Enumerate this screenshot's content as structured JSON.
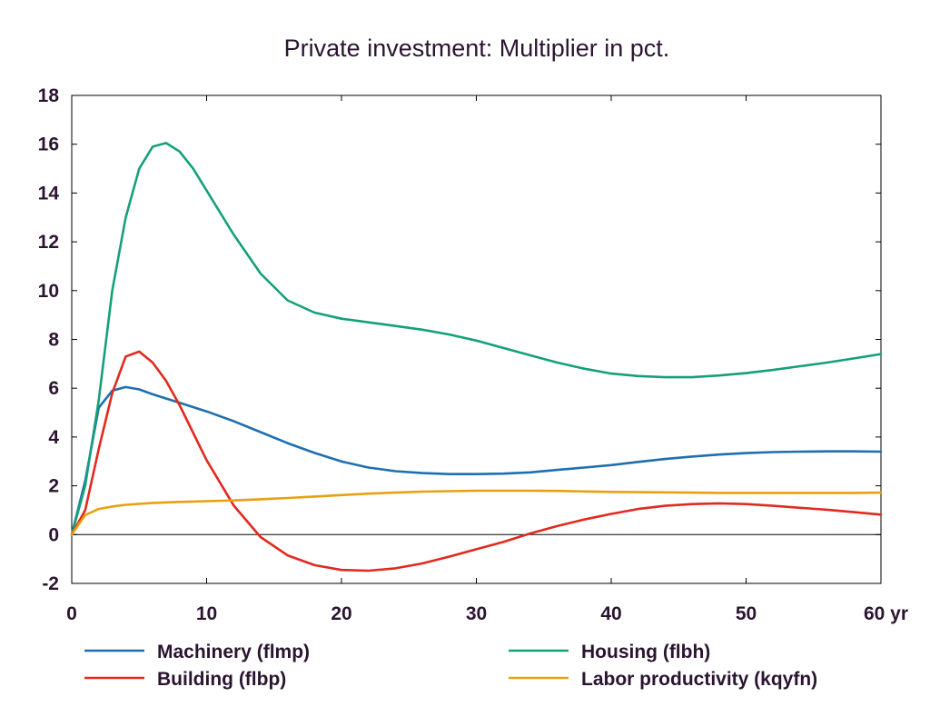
{
  "chart_data": {
    "type": "line",
    "title": "Private investment: Multiplier in pct.",
    "xlabel": "",
    "ylabel": "",
    "xlim": [
      0,
      60
    ],
    "ylim": [
      -2,
      18
    ],
    "x_ticks": [
      0,
      10,
      20,
      30,
      40,
      50,
      60
    ],
    "x_tick_labels": [
      "0",
      "10",
      "20",
      "30",
      "40",
      "50",
      "60 yr"
    ],
    "y_ticks": [
      -2,
      0,
      2,
      4,
      6,
      8,
      10,
      12,
      14,
      16,
      18
    ],
    "y_tick_labels": [
      "-2",
      "0",
      "2",
      "4",
      "6",
      "8",
      "10",
      "12",
      "14",
      "16",
      "18"
    ],
    "grid": false,
    "zero_line": true,
    "legend_position": "bottom",
    "series": [
      {
        "name": "Machinery (flmp)",
        "color": "#1f6fb0",
        "points": [
          [
            0,
            0
          ],
          [
            1,
            2.2
          ],
          [
            2,
            5.2
          ],
          [
            3,
            5.9
          ],
          [
            4,
            6.05
          ],
          [
            5,
            5.95
          ],
          [
            6,
            5.75
          ],
          [
            8,
            5.4
          ],
          [
            10,
            5.05
          ],
          [
            12,
            4.65
          ],
          [
            14,
            4.2
          ],
          [
            16,
            3.75
          ],
          [
            18,
            3.35
          ],
          [
            20,
            3.0
          ],
          [
            22,
            2.75
          ],
          [
            24,
            2.6
          ],
          [
            26,
            2.52
          ],
          [
            28,
            2.48
          ],
          [
            30,
            2.48
          ],
          [
            32,
            2.5
          ],
          [
            34,
            2.55
          ],
          [
            36,
            2.65
          ],
          [
            38,
            2.75
          ],
          [
            40,
            2.85
          ],
          [
            42,
            2.98
          ],
          [
            44,
            3.1
          ],
          [
            46,
            3.2
          ],
          [
            48,
            3.28
          ],
          [
            50,
            3.34
          ],
          [
            52,
            3.38
          ],
          [
            54,
            3.4
          ],
          [
            56,
            3.41
          ],
          [
            58,
            3.41
          ],
          [
            60,
            3.4
          ]
        ]
      },
      {
        "name": "Housing (flbh)",
        "color": "#15a07a",
        "points": [
          [
            0,
            0
          ],
          [
            1,
            2.0
          ],
          [
            2,
            5.5
          ],
          [
            3,
            10.0
          ],
          [
            4,
            13.0
          ],
          [
            5,
            15.0
          ],
          [
            6,
            15.9
          ],
          [
            7,
            16.05
          ],
          [
            8,
            15.7
          ],
          [
            9,
            15.0
          ],
          [
            10,
            14.1
          ],
          [
            12,
            12.3
          ],
          [
            14,
            10.7
          ],
          [
            16,
            9.6
          ],
          [
            18,
            9.1
          ],
          [
            20,
            8.85
          ],
          [
            22,
            8.7
          ],
          [
            24,
            8.55
          ],
          [
            26,
            8.4
          ],
          [
            28,
            8.2
          ],
          [
            30,
            7.95
          ],
          [
            32,
            7.65
          ],
          [
            34,
            7.35
          ],
          [
            36,
            7.05
          ],
          [
            38,
            6.8
          ],
          [
            40,
            6.6
          ],
          [
            42,
            6.5
          ],
          [
            44,
            6.45
          ],
          [
            46,
            6.45
          ],
          [
            48,
            6.52
          ],
          [
            50,
            6.62
          ],
          [
            52,
            6.75
          ],
          [
            54,
            6.9
          ],
          [
            56,
            7.05
          ],
          [
            58,
            7.22
          ],
          [
            60,
            7.4
          ]
        ]
      },
      {
        "name": "Building (flbp)",
        "color": "#e02a20",
        "points": [
          [
            0,
            0
          ],
          [
            1,
            1.0
          ],
          [
            2,
            3.5
          ],
          [
            3,
            5.8
          ],
          [
            4,
            7.3
          ],
          [
            5,
            7.5
          ],
          [
            6,
            7.05
          ],
          [
            7,
            6.3
          ],
          [
            8,
            5.3
          ],
          [
            10,
            3.05
          ],
          [
            12,
            1.2
          ],
          [
            14,
            -0.1
          ],
          [
            16,
            -0.85
          ],
          [
            18,
            -1.25
          ],
          [
            20,
            -1.45
          ],
          [
            22,
            -1.48
          ],
          [
            24,
            -1.38
          ],
          [
            26,
            -1.18
          ],
          [
            28,
            -0.9
          ],
          [
            30,
            -0.6
          ],
          [
            32,
            -0.3
          ],
          [
            34,
            0.05
          ],
          [
            36,
            0.35
          ],
          [
            38,
            0.62
          ],
          [
            40,
            0.85
          ],
          [
            42,
            1.05
          ],
          [
            44,
            1.18
          ],
          [
            46,
            1.25
          ],
          [
            48,
            1.28
          ],
          [
            50,
            1.25
          ],
          [
            52,
            1.18
          ],
          [
            54,
            1.1
          ],
          [
            56,
            1.02
          ],
          [
            58,
            0.92
          ],
          [
            60,
            0.82
          ]
        ]
      },
      {
        "name": "Labor productivity (kqyfn)",
        "color": "#e8a010",
        "points": [
          [
            0,
            0
          ],
          [
            1,
            0.8
          ],
          [
            2,
            1.05
          ],
          [
            3,
            1.15
          ],
          [
            4,
            1.22
          ],
          [
            6,
            1.3
          ],
          [
            8,
            1.34
          ],
          [
            10,
            1.37
          ],
          [
            12,
            1.4
          ],
          [
            14,
            1.45
          ],
          [
            16,
            1.5
          ],
          [
            18,
            1.56
          ],
          [
            20,
            1.62
          ],
          [
            22,
            1.68
          ],
          [
            24,
            1.72
          ],
          [
            26,
            1.76
          ],
          [
            28,
            1.78
          ],
          [
            30,
            1.8
          ],
          [
            32,
            1.8
          ],
          [
            34,
            1.8
          ],
          [
            36,
            1.79
          ],
          [
            38,
            1.77
          ],
          [
            40,
            1.75
          ],
          [
            42,
            1.74
          ],
          [
            44,
            1.73
          ],
          [
            46,
            1.72
          ],
          [
            48,
            1.71
          ],
          [
            50,
            1.71
          ],
          [
            52,
            1.71
          ],
          [
            54,
            1.71
          ],
          [
            56,
            1.71
          ],
          [
            58,
            1.71
          ],
          [
            60,
            1.72
          ]
        ]
      }
    ]
  }
}
